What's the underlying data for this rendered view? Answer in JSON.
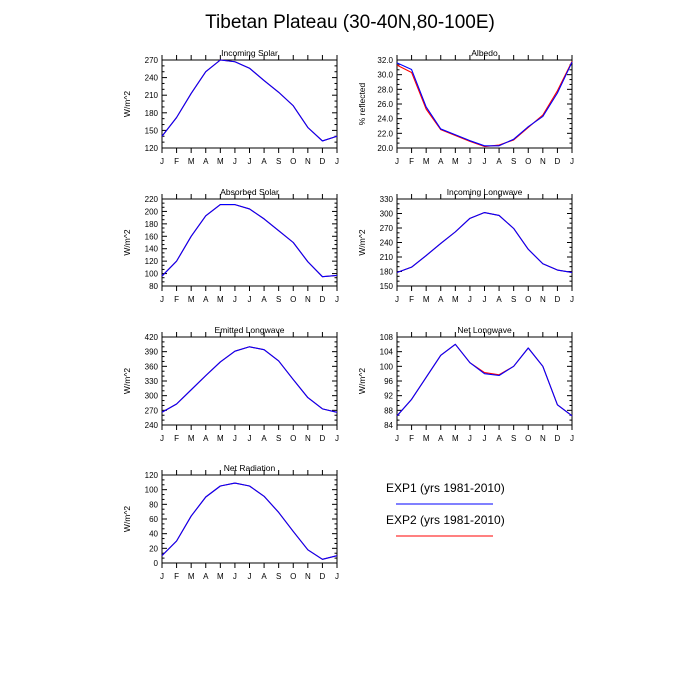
{
  "page_title": "Tibetan Plateau (30-40N,80-100E)",
  "legend": [
    {
      "name": "EXP1 (yrs 1981-2010)",
      "color": "#0000ff"
    },
    {
      "name": "EXP2 (yrs 1981-2010)",
      "color": "#ff0000"
    }
  ],
  "chart_data": [
    {
      "type": "line",
      "title": "Incoming Solar",
      "ylabel": "W/m^2",
      "categories": [
        "J",
        "F",
        "M",
        "A",
        "M",
        "J",
        "J",
        "A",
        "S",
        "O",
        "N",
        "D",
        "J"
      ],
      "ylim": [
        120,
        270
      ],
      "yticks": [
        120,
        150,
        180,
        210,
        240,
        270
      ],
      "ytick_labels": [
        "120",
        "150",
        "180",
        "210",
        "240",
        "270"
      ],
      "series": [
        {
          "name": "EXP1 (yrs 1981-2010)",
          "color": "#0000ff",
          "values": [
            140,
            172,
            213,
            250,
            270,
            267,
            256,
            235,
            215,
            192,
            155,
            132,
            140
          ]
        },
        {
          "name": "EXP2 (yrs 1981-2010)",
          "color": "#ff0000",
          "values": [
            140,
            172,
            213,
            250,
            270,
            267,
            256,
            235,
            215,
            192,
            155,
            132,
            140
          ]
        }
      ]
    },
    {
      "type": "line",
      "title": "Albedo",
      "ylabel": "% reflected",
      "categories": [
        "J",
        "F",
        "M",
        "A",
        "M",
        "J",
        "J",
        "A",
        "S",
        "O",
        "N",
        "D",
        "J"
      ],
      "ylim": [
        20.0,
        32.0
      ],
      "yticks": [
        20,
        22,
        24,
        26,
        28,
        30,
        32
      ],
      "ytick_labels": [
        "20.0",
        "22.0",
        "24.0",
        "26.0",
        "28.0",
        "30.0",
        "32.0"
      ],
      "series": [
        {
          "name": "EXP1 (yrs 1981-2010)",
          "color": "#0000ff",
          "values": [
            31.6,
            30.7,
            25.6,
            22.6,
            21.8,
            21.0,
            20.3,
            20.3,
            21.2,
            22.9,
            24.3,
            27.5,
            31.7
          ]
        },
        {
          "name": "EXP2 (yrs 1981-2010)",
          "color": "#ff0000",
          "values": [
            31.3,
            30.3,
            25.3,
            22.5,
            21.7,
            20.9,
            20.2,
            20.4,
            21.1,
            22.8,
            24.5,
            27.8,
            31.8
          ]
        }
      ]
    },
    {
      "type": "line",
      "title": "Absorbed Solar",
      "ylabel": "W/m^2",
      "categories": [
        "J",
        "F",
        "M",
        "A",
        "M",
        "J",
        "J",
        "A",
        "S",
        "O",
        "N",
        "D",
        "J"
      ],
      "ylim": [
        80,
        220
      ],
      "yticks": [
        80,
        100,
        120,
        140,
        160,
        180,
        200,
        220
      ],
      "ytick_labels": [
        "80",
        "100",
        "120",
        "140",
        "160",
        "180",
        "200",
        "220"
      ],
      "series": [
        {
          "name": "EXP1 (yrs 1981-2010)",
          "color": "#0000ff",
          "values": [
            96,
            120,
            160,
            193,
            211,
            211,
            204,
            188,
            169,
            150,
            119,
            95,
            97
          ]
        },
        {
          "name": "EXP2 (yrs 1981-2010)",
          "color": "#ff0000",
          "values": [
            96,
            120,
            160,
            193,
            211,
            211,
            204,
            188,
            169,
            150,
            119,
            95,
            97
          ]
        }
      ]
    },
    {
      "type": "line",
      "title": "Incoming Longwave",
      "ylabel": "W/m^2",
      "categories": [
        "J",
        "F",
        "M",
        "A",
        "M",
        "J",
        "J",
        "A",
        "S",
        "O",
        "N",
        "D",
        "J"
      ],
      "ylim": [
        150,
        330
      ],
      "yticks": [
        150,
        180,
        210,
        240,
        270,
        300,
        330
      ],
      "ytick_labels": [
        "150",
        "180",
        "210",
        "240",
        "270",
        "300",
        "330"
      ],
      "series": [
        {
          "name": "EXP1 (yrs 1981-2010)",
          "color": "#0000ff",
          "values": [
            178,
            189,
            213,
            238,
            262,
            290,
            302,
            296,
            269,
            226,
            196,
            183,
            178
          ]
        },
        {
          "name": "EXP2 (yrs 1981-2010)",
          "color": "#ff0000",
          "values": [
            178,
            189,
            213,
            238,
            262,
            290,
            302,
            296,
            269,
            226,
            196,
            183,
            178
          ]
        }
      ]
    },
    {
      "type": "line",
      "title": "Emitted Longwave",
      "ylabel": "W/m^2",
      "categories": [
        "J",
        "F",
        "M",
        "A",
        "M",
        "J",
        "J",
        "A",
        "S",
        "O",
        "N",
        "D",
        "J"
      ],
      "ylim": [
        240,
        420
      ],
      "yticks": [
        240,
        270,
        300,
        330,
        360,
        390,
        420
      ],
      "ytick_labels": [
        "240",
        "270",
        "300",
        "330",
        "360",
        "390",
        "420"
      ],
      "series": [
        {
          "name": "EXP1 (yrs 1981-2010)",
          "color": "#0000ff",
          "values": [
            266,
            283,
            312,
            341,
            369,
            391,
            400,
            394,
            371,
            333,
            296,
            273,
            266
          ]
        },
        {
          "name": "EXP2 (yrs 1981-2010)",
          "color": "#ff0000",
          "values": [
            266,
            283,
            312,
            341,
            369,
            391,
            400,
            394,
            371,
            333,
            296,
            273,
            266
          ]
        }
      ]
    },
    {
      "type": "line",
      "title": "Net Longwave",
      "ylabel": "W/m^2",
      "categories": [
        "J",
        "F",
        "M",
        "A",
        "M",
        "J",
        "J",
        "A",
        "S",
        "O",
        "N",
        "D",
        "J"
      ],
      "ylim": [
        84,
        108
      ],
      "yticks": [
        84,
        88,
        92,
        96,
        100,
        104,
        108
      ],
      "ytick_labels": [
        "84",
        "88",
        "92",
        "96",
        "100",
        "104",
        "108"
      ],
      "series": [
        {
          "name": "EXP1 (yrs 1981-2010)",
          "color": "#0000ff",
          "values": [
            86.5,
            91,
            97,
            103,
            106,
            101,
            98,
            97.5,
            100,
            105,
            100,
            89.5,
            86.5
          ]
        },
        {
          "name": "EXP2 (yrs 1981-2010)",
          "color": "#ff0000",
          "values": [
            86.5,
            91,
            97,
            103,
            106,
            101,
            98.3,
            97.7,
            100,
            105,
            100,
            89.5,
            86.5
          ]
        }
      ]
    },
    {
      "type": "line",
      "title": "Net Radiation",
      "ylabel": "W/m^2",
      "categories": [
        "J",
        "F",
        "M",
        "A",
        "M",
        "J",
        "J",
        "A",
        "S",
        "O",
        "N",
        "D",
        "J"
      ],
      "ylim": [
        0,
        120
      ],
      "yticks": [
        0,
        20,
        40,
        60,
        80,
        100,
        120
      ],
      "ytick_labels": [
        "0",
        "20",
        "40",
        "60",
        "80",
        "100",
        "120"
      ],
      "series": [
        {
          "name": "EXP1 (yrs 1981-2010)",
          "color": "#0000ff",
          "values": [
            10,
            30,
            64,
            90,
            105,
            109,
            105,
            91,
            69,
            43,
            18,
            5,
            10
          ]
        },
        {
          "name": "EXP2 (yrs 1981-2010)",
          "color": "#ff0000",
          "values": [
            10,
            30,
            64,
            90,
            105,
            109,
            105,
            91,
            69,
            43,
            18,
            5,
            10
          ]
        }
      ]
    }
  ]
}
